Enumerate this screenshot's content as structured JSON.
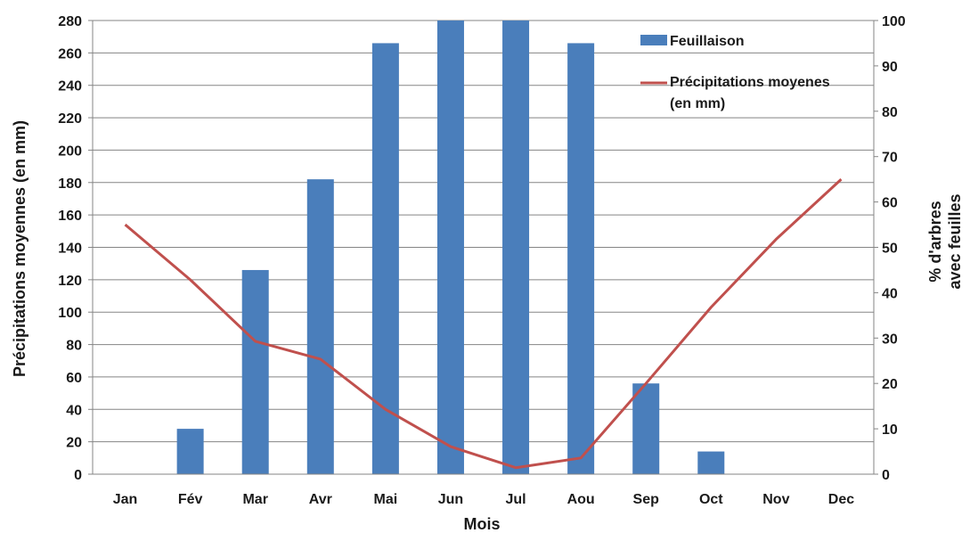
{
  "chart_data": {
    "type": "bar+line",
    "categories": [
      "Jan",
      "Fév",
      "Mar",
      "Avr",
      "Mai",
      "Jun",
      "Jul",
      "Aou",
      "Sep",
      "Oct",
      "Nov",
      "Dec"
    ],
    "series": [
      {
        "name": "Feuillaison",
        "kind": "bar",
        "axis": "right",
        "color": "#4a7ebb",
        "values": [
          0,
          10,
          45,
          65,
          95,
          100,
          100,
          95,
          20,
          5,
          0,
          0
        ]
      },
      {
        "name": "Précipitations moyenes (en mm)",
        "kind": "line",
        "axis": "left",
        "color": "#c0504d",
        "values": [
          154,
          120,
          82,
          71,
          40,
          17,
          4,
          10,
          56,
          103,
          145,
          182
        ]
      }
    ],
    "legend_lines": {
      "bar": [
        "Feuillaison"
      ],
      "line": [
        "Précipitations moyenes",
        "(en mm)"
      ]
    },
    "xlabel": "Mois",
    "ylabel_left": "Précipitations moyennes (en mm)",
    "ylabel_right_lines": [
      "% d'arbres",
      "avec feuilles"
    ],
    "ylim_left": [
      0,
      280
    ],
    "yticks_left": [
      0,
      20,
      40,
      60,
      80,
      100,
      120,
      140,
      160,
      180,
      200,
      220,
      240,
      260,
      280
    ],
    "ylim_right": [
      0,
      100
    ],
    "yticks_right": [
      0,
      10,
      20,
      30,
      40,
      50,
      60,
      70,
      80,
      90,
      100
    ],
    "grid": true,
    "legend_position": "top-right"
  }
}
